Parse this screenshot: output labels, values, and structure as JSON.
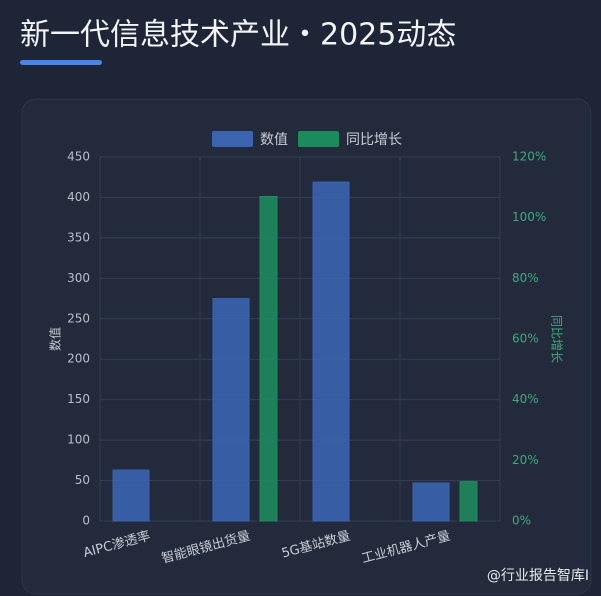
{
  "chart_data": {
    "type": "bar",
    "title": "新一代信息技术产业・2025动态",
    "categories": [
      "AIPC渗透率",
      "智能眼镜出货量",
      "5G基站数量",
      "工业机器人产量"
    ],
    "series": [
      {
        "name": "数值",
        "color": "#3a64b0",
        "values": [
          63,
          275,
          419,
          47
        ]
      },
      {
        "name": "同比增长",
        "color": "#1d8a5e",
        "axis": "y2",
        "values": [
          null,
          107,
          null,
          13
        ]
      }
    ],
    "y_label": "数值",
    "y2_label": "同比增长",
    "ylim": [
      0,
      450
    ],
    "yticks": [
      0,
      50,
      100,
      150,
      200,
      250,
      300,
      350,
      400,
      450
    ],
    "y2lim": [
      0,
      120
    ],
    "y2ticks": [
      {
        "value": 0,
        "label": "0%"
      },
      {
        "value": 20,
        "label": "20%"
      },
      {
        "value": 40,
        "label": "40%"
      },
      {
        "value": 60,
        "label": "60%"
      },
      {
        "value": 80,
        "label": "80%"
      },
      {
        "value": 100,
        "label": "100%"
      },
      {
        "value": 120,
        "label": "120%"
      }
    ],
    "grid": true,
    "legend": "top",
    "watermark": "@行业报告智库I"
  }
}
